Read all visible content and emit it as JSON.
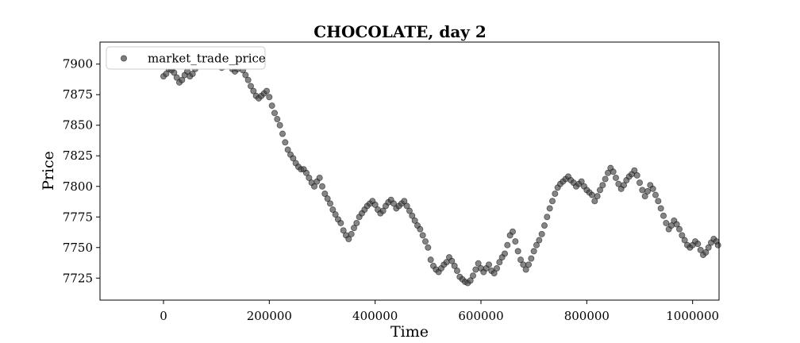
{
  "chart_data": {
    "type": "scatter",
    "title": "CHOCOLATE, day 2",
    "xlabel": "Time",
    "ylabel": "Price",
    "xlim": [
      -120000,
      1050000
    ],
    "ylim": [
      7707,
      7918
    ],
    "xticks": [
      0,
      200000,
      400000,
      600000,
      800000,
      1000000
    ],
    "xtick_labels": [
      "0",
      "200000",
      "400000",
      "600000",
      "800000",
      "1000000"
    ],
    "yticks": [
      7725,
      7750,
      7775,
      7800,
      7825,
      7850,
      7875,
      7900
    ],
    "ytick_labels": [
      "7725",
      "7750",
      "7775",
      "7800",
      "7825",
      "7850",
      "7875",
      "7900"
    ],
    "grid": false,
    "legend_position": "top-left",
    "point_color": "#444444",
    "series": [
      {
        "name": "market_trade_price",
        "points": [
          [
            0,
            7890
          ],
          [
            5000,
            7892
          ],
          [
            10000,
            7896
          ],
          [
            15000,
            7895
          ],
          [
            20000,
            7893
          ],
          [
            25000,
            7889
          ],
          [
            30000,
            7885
          ],
          [
            35000,
            7887
          ],
          [
            40000,
            7891
          ],
          [
            45000,
            7894
          ],
          [
            50000,
            7890
          ],
          [
            55000,
            7892
          ],
          [
            60000,
            7896
          ],
          [
            65000,
            7899
          ],
          [
            70000,
            7903
          ],
          [
            75000,
            7907
          ],
          [
            80000,
            7905
          ],
          [
            85000,
            7908
          ],
          [
            90000,
            7904
          ],
          [
            95000,
            7901
          ],
          [
            100000,
            7902
          ],
          [
            105000,
            7900
          ],
          [
            110000,
            7897
          ],
          [
            115000,
            7898
          ],
          [
            120000,
            7902
          ],
          [
            125000,
            7899
          ],
          [
            130000,
            7896
          ],
          [
            135000,
            7894
          ],
          [
            140000,
            7896
          ],
          [
            145000,
            7899
          ],
          [
            150000,
            7895
          ],
          [
            155000,
            7891
          ],
          [
            160000,
            7887
          ],
          [
            165000,
            7882
          ],
          [
            170000,
            7878
          ],
          [
            175000,
            7874
          ],
          [
            180000,
            7872
          ],
          [
            185000,
            7874
          ],
          [
            190000,
            7876
          ],
          [
            195000,
            7878
          ],
          [
            200000,
            7873
          ],
          [
            205000,
            7866
          ],
          [
            210000,
            7860
          ],
          [
            215000,
            7855
          ],
          [
            220000,
            7850
          ],
          [
            225000,
            7843
          ],
          [
            230000,
            7836
          ],
          [
            235000,
            7830
          ],
          [
            240000,
            7826
          ],
          [
            245000,
            7823
          ],
          [
            250000,
            7819
          ],
          [
            255000,
            7816
          ],
          [
            260000,
            7814
          ],
          [
            265000,
            7814
          ],
          [
            270000,
            7811
          ],
          [
            275000,
            7807
          ],
          [
            280000,
            7803
          ],
          [
            285000,
            7800
          ],
          [
            290000,
            7804
          ],
          [
            295000,
            7807
          ],
          [
            300000,
            7800
          ],
          [
            305000,
            7794
          ],
          [
            310000,
            7790
          ],
          [
            315000,
            7786
          ],
          [
            320000,
            7781
          ],
          [
            325000,
            7777
          ],
          [
            330000,
            7773
          ],
          [
            335000,
            7770
          ],
          [
            340000,
            7764
          ],
          [
            345000,
            7760
          ],
          [
            350000,
            7757
          ],
          [
            355000,
            7761
          ],
          [
            360000,
            7766
          ],
          [
            365000,
            7770
          ],
          [
            370000,
            7775
          ],
          [
            375000,
            7778
          ],
          [
            380000,
            7781
          ],
          [
            385000,
            7784
          ],
          [
            390000,
            7786
          ],
          [
            395000,
            7788
          ],
          [
            400000,
            7785
          ],
          [
            405000,
            7781
          ],
          [
            410000,
            7778
          ],
          [
            415000,
            7780
          ],
          [
            420000,
            7784
          ],
          [
            425000,
            7787
          ],
          [
            430000,
            7789
          ],
          [
            435000,
            7786
          ],
          [
            440000,
            7782
          ],
          [
            445000,
            7784
          ],
          [
            450000,
            7786
          ],
          [
            455000,
            7788
          ],
          [
            460000,
            7784
          ],
          [
            465000,
            7780
          ],
          [
            470000,
            7776
          ],
          [
            475000,
            7772
          ],
          [
            480000,
            7768
          ],
          [
            485000,
            7765
          ],
          [
            490000,
            7760
          ],
          [
            495000,
            7755
          ],
          [
            500000,
            7750
          ],
          [
            505000,
            7740
          ],
          [
            510000,
            7735
          ],
          [
            515000,
            7732
          ],
          [
            520000,
            7730
          ],
          [
            525000,
            7733
          ],
          [
            530000,
            7736
          ],
          [
            535000,
            7738
          ],
          [
            540000,
            7742
          ],
          [
            545000,
            7739
          ],
          [
            550000,
            7735
          ],
          [
            555000,
            7731
          ],
          [
            560000,
            7726
          ],
          [
            565000,
            7724
          ],
          [
            570000,
            7722
          ],
          [
            575000,
            7721
          ],
          [
            580000,
            7723
          ],
          [
            585000,
            7727
          ],
          [
            590000,
            7732
          ],
          [
            595000,
            7737
          ],
          [
            600000,
            7733
          ],
          [
            605000,
            7730
          ],
          [
            610000,
            7733
          ],
          [
            615000,
            7736
          ],
          [
            620000,
            7731
          ],
          [
            625000,
            7729
          ],
          [
            630000,
            7733
          ],
          [
            635000,
            7738
          ],
          [
            640000,
            7742
          ],
          [
            645000,
            7745
          ],
          [
            650000,
            7752
          ],
          [
            655000,
            7760
          ],
          [
            660000,
            7763
          ],
          [
            665000,
            7755
          ],
          [
            670000,
            7747
          ],
          [
            675000,
            7740
          ],
          [
            680000,
            7736
          ],
          [
            685000,
            7732
          ],
          [
            690000,
            7736
          ],
          [
            695000,
            7741
          ],
          [
            700000,
            7747
          ],
          [
            705000,
            7752
          ],
          [
            710000,
            7756
          ],
          [
            715000,
            7761
          ],
          [
            720000,
            7768
          ],
          [
            725000,
            7775
          ],
          [
            730000,
            7782
          ],
          [
            735000,
            7788
          ],
          [
            740000,
            7794
          ],
          [
            745000,
            7799
          ],
          [
            750000,
            7802
          ],
          [
            755000,
            7804
          ],
          [
            760000,
            7806
          ],
          [
            765000,
            7808
          ],
          [
            770000,
            7805
          ],
          [
            775000,
            7803
          ],
          [
            780000,
            7800
          ],
          [
            785000,
            7802
          ],
          [
            790000,
            7804
          ],
          [
            795000,
            7800
          ],
          [
            800000,
            7797
          ],
          [
            805000,
            7795
          ],
          [
            810000,
            7793
          ],
          [
            815000,
            7788
          ],
          [
            820000,
            7792
          ],
          [
            825000,
            7797
          ],
          [
            830000,
            7801
          ],
          [
            835000,
            7806
          ],
          [
            840000,
            7811
          ],
          [
            845000,
            7815
          ],
          [
            850000,
            7812
          ],
          [
            855000,
            7807
          ],
          [
            860000,
            7802
          ],
          [
            865000,
            7798
          ],
          [
            870000,
            7801
          ],
          [
            875000,
            7805
          ],
          [
            880000,
            7808
          ],
          [
            885000,
            7810
          ],
          [
            890000,
            7813
          ],
          [
            895000,
            7809
          ],
          [
            900000,
            7803
          ],
          [
            905000,
            7797
          ],
          [
            910000,
            7792
          ],
          [
            915000,
            7796
          ],
          [
            920000,
            7801
          ],
          [
            925000,
            7798
          ],
          [
            930000,
            7793
          ],
          [
            935000,
            7788
          ],
          [
            940000,
            7782
          ],
          [
            945000,
            7776
          ],
          [
            950000,
            7770
          ],
          [
            955000,
            7765
          ],
          [
            960000,
            7768
          ],
          [
            965000,
            7772
          ],
          [
            970000,
            7769
          ],
          [
            975000,
            7765
          ],
          [
            980000,
            7760
          ],
          [
            985000,
            7756
          ],
          [
            990000,
            7752
          ],
          [
            995000,
            7750
          ],
          [
            1000000,
            7752
          ],
          [
            1005000,
            7755
          ],
          [
            1010000,
            7753
          ],
          [
            1015000,
            7748
          ],
          [
            1020000,
            7744
          ],
          [
            1025000,
            7746
          ],
          [
            1030000,
            7750
          ],
          [
            1035000,
            7754
          ],
          [
            1040000,
            7757
          ],
          [
            1045000,
            7755
          ],
          [
            1048000,
            7752
          ]
        ]
      }
    ]
  }
}
